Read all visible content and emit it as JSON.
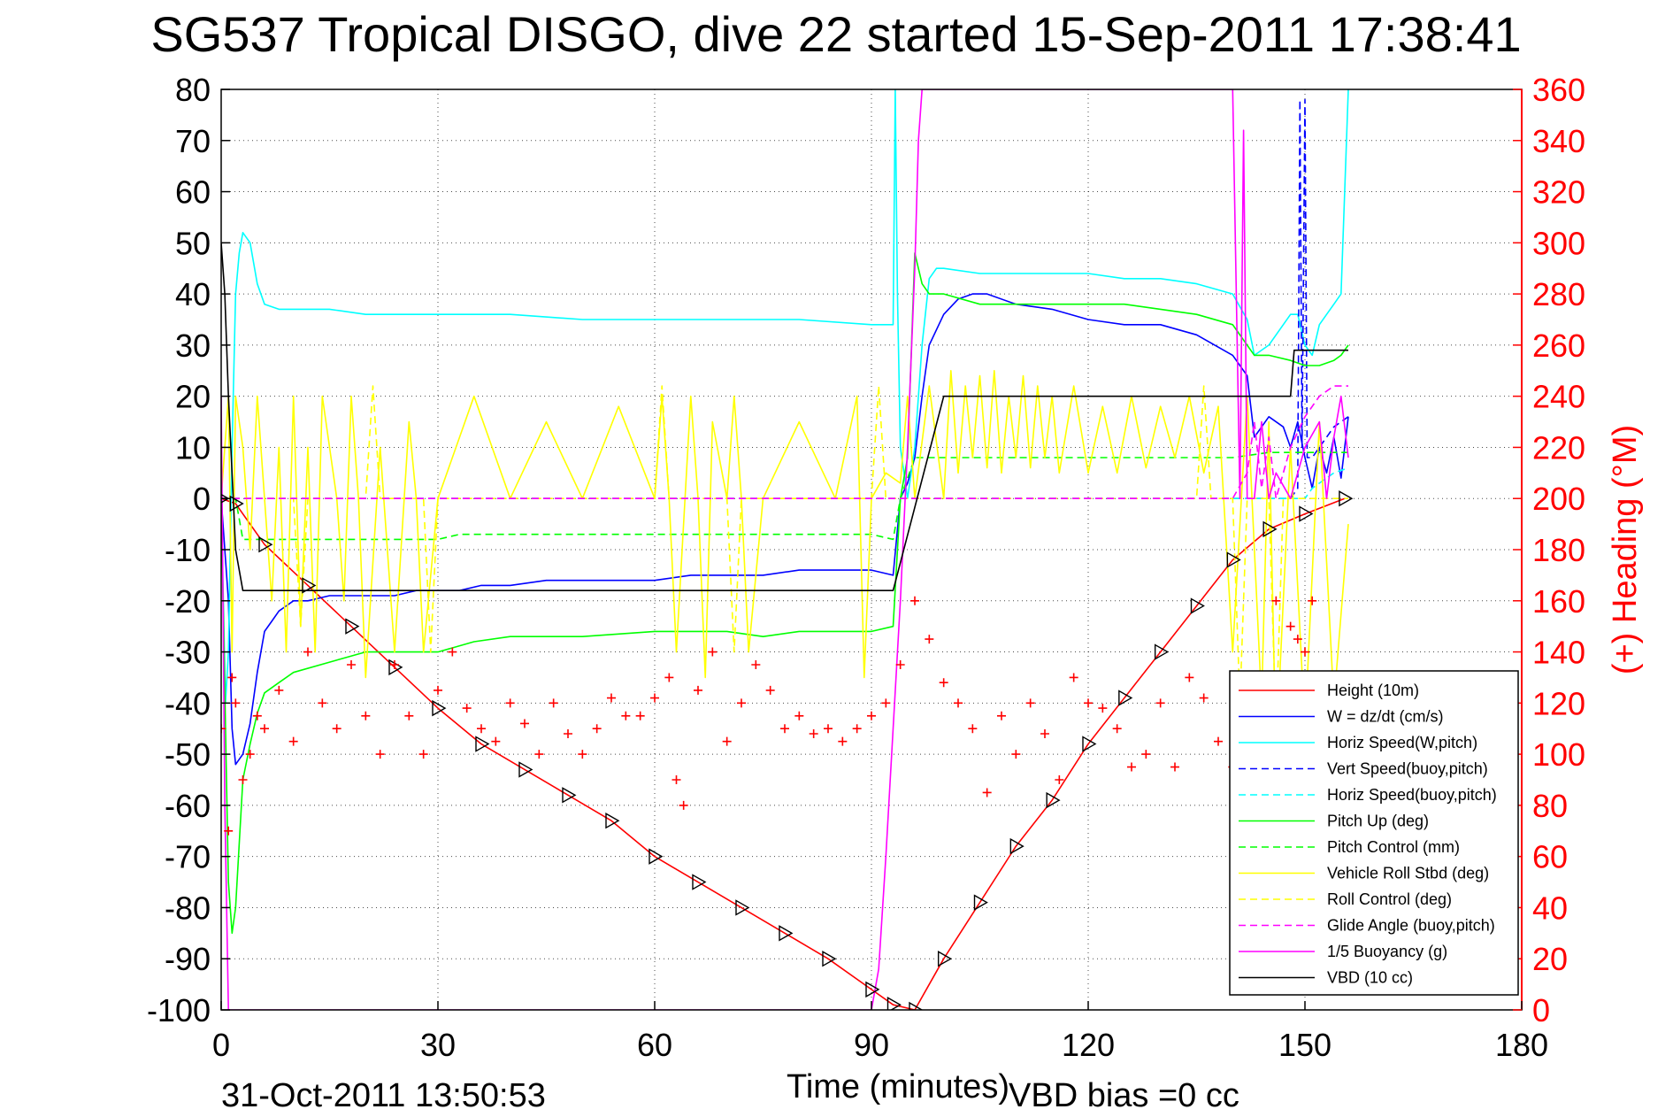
{
  "chart_data": {
    "type": "line",
    "title": "SG537 Tropical DISGO, dive 22 started 15-Sep-2011 17:38:41",
    "xlabel": "Time (minutes)",
    "ylabel_right": "(+) Heading (°M)",
    "xlim": [
      0,
      180
    ],
    "ylim": [
      -100,
      80
    ],
    "ylim_right": [
      0,
      360
    ],
    "x_ticks": [
      "0",
      "30",
      "60",
      "90",
      "120",
      "150",
      "180"
    ],
    "y_ticks": [
      "80",
      "70",
      "60",
      "50",
      "40",
      "30",
      "20",
      "10",
      "0",
      "-10",
      "-20",
      "-30",
      "-40",
      "-50",
      "-60",
      "-70",
      "-80",
      "-90",
      "-100"
    ],
    "y_right_ticks": [
      "360",
      "340",
      "320",
      "300",
      "280",
      "260",
      "240",
      "220",
      "200",
      "180",
      "160",
      "140",
      "120",
      "100",
      "80",
      "60",
      "40",
      "20",
      "0"
    ],
    "grid": true,
    "legend_position": "bottom-right",
    "footer_date": "31-Oct-2011 13:50:53",
    "footer_vbd": "VBD bias =0 cc",
    "legend": [
      {
        "label": "Height (10m)",
        "color": "#ff0000",
        "dash": "solid"
      },
      {
        "label": "W = dz/dt (cm/s)",
        "color": "#0000ff",
        "dash": "solid"
      },
      {
        "label": "Horiz Speed(W,pitch)",
        "color": "#00ffff",
        "dash": "solid"
      },
      {
        "label": "Vert Speed(buoy,pitch)",
        "color": "#0000ff",
        "dash": "dashed"
      },
      {
        "label": "Horiz Speed(buoy,pitch)",
        "color": "#00ffff",
        "dash": "dashed"
      },
      {
        "label": "Pitch Up (deg)",
        "color": "#00ff00",
        "dash": "solid"
      },
      {
        "label": "Pitch Control (mm)",
        "color": "#00ff00",
        "dash": "dashed"
      },
      {
        "label": "Vehicle Roll Stbd (deg)",
        "color": "#ffff00",
        "dash": "solid"
      },
      {
        "label": "Roll Control (deg)",
        "color": "#ffff00",
        "dash": "dashed"
      },
      {
        "label": "Glide Angle (buoy,pitch)",
        "color": "#ff00ff",
        "dash": "dashed"
      },
      {
        "label": "1/5 Buoyancy (g)",
        "color": "#ff00ff",
        "dash": "solid"
      },
      {
        "label": "VBD (10 cc)",
        "color": "#000000",
        "dash": "solid"
      }
    ],
    "series": [
      {
        "name": "Height (10m)",
        "color": "#ff0000",
        "dash": "solid",
        "marker": "triangle",
        "x": [
          0,
          2,
          6,
          12,
          18,
          24,
          30,
          36,
          42,
          48,
          54,
          60,
          66,
          72,
          78,
          84,
          90,
          93,
          96,
          100,
          105,
          110,
          115,
          120,
          125,
          130,
          135,
          140,
          145,
          150,
          155.5
        ],
        "y": [
          0,
          -1,
          -9,
          -17,
          -25,
          -33,
          -41,
          -48,
          -53,
          -58,
          -63,
          -70,
          -75,
          -80,
          -85,
          -90,
          -96,
          -99,
          -100,
          -90,
          -79,
          -68,
          -59,
          -48,
          -39,
          -30,
          -21,
          -12,
          -6,
          -3,
          0
        ]
      },
      {
        "name": "W = dz/dt (cm/s)",
        "color": "#0000ff",
        "dash": "solid",
        "x": [
          0,
          1,
          1.5,
          2,
          3,
          4,
          5,
          6,
          7,
          8,
          9,
          10,
          12,
          15,
          18,
          21,
          24,
          27,
          30,
          33,
          36,
          40,
          45,
          50,
          55,
          60,
          65,
          70,
          75,
          80,
          85,
          90,
          93,
          94,
          95,
          96,
          97,
          98,
          100,
          102,
          104,
          106,
          110,
          115,
          120,
          125,
          130,
          135,
          140,
          142,
          143,
          145,
          147,
          148,
          149,
          150,
          151,
          152,
          153,
          154,
          155,
          156
        ],
        "y": [
          0,
          -20,
          -45,
          -52,
          -50,
          -44,
          -34,
          -26,
          -24,
          -22,
          -21,
          -20,
          -20,
          -19,
          -19,
          -19,
          -19,
          -18,
          -18,
          -18,
          -17,
          -17,
          -16,
          -16,
          -16,
          -16,
          -15,
          -15,
          -15,
          -14,
          -14,
          -14,
          -15,
          0,
          3,
          8,
          20,
          30,
          36,
          39,
          40,
          40,
          38,
          37,
          35,
          34,
          34,
          32,
          28,
          24,
          12,
          16,
          14,
          10,
          15,
          8,
          2,
          10,
          5,
          12,
          4,
          16
        ]
      },
      {
        "name": "Horiz Speed(W,pitch)",
        "color": "#00ffff",
        "dash": "solid",
        "x": [
          0,
          0.6,
          1,
          1.5,
          2,
          2.5,
          3,
          4,
          5,
          6,
          8,
          10,
          15,
          20,
          25,
          30,
          40,
          50,
          60,
          70,
          80,
          90,
          93,
          93.3,
          93.6,
          94,
          95,
          96,
          97,
          98,
          99,
          100,
          105,
          110,
          115,
          120,
          125,
          130,
          135,
          140,
          142,
          143,
          145,
          147,
          148,
          149,
          150,
          151,
          152,
          153,
          154,
          155,
          155.5,
          156
        ],
        "y": [
          0,
          -40,
          -30,
          10,
          40,
          48,
          52,
          50,
          42,
          38,
          37,
          37,
          37,
          36,
          36,
          36,
          36,
          35,
          35,
          35,
          35,
          34,
          34,
          80,
          40,
          10,
          0,
          10,
          30,
          43,
          45,
          45,
          44,
          44,
          44,
          44,
          43,
          43,
          42,
          40,
          35,
          28,
          30,
          34,
          36,
          36,
          30,
          28,
          34,
          36,
          38,
          40,
          60,
          80
        ]
      },
      {
        "name": "Vert Speed(buoy,pitch)",
        "color": "#0000ff",
        "dash": "dashed",
        "x": [
          0,
          148,
          149,
          149.3,
          149.6,
          150,
          150.3,
          151,
          152,
          153,
          154,
          155,
          156
        ],
        "y": [
          0,
          0,
          2,
          78,
          10,
          78,
          8,
          8,
          10,
          12,
          14,
          15,
          16
        ]
      },
      {
        "name": "Horiz Speed(buoy,pitch)",
        "color": "#00ffff",
        "dash": "dashed",
        "x": [
          0,
          148,
          150,
          151,
          152,
          154,
          156
        ],
        "y": [
          0,
          0,
          0,
          2,
          3,
          5,
          6
        ]
      },
      {
        "name": "Pitch Up (deg)",
        "color": "#00ff00",
        "dash": "solid",
        "x": [
          0,
          1,
          1.5,
          2,
          3,
          4,
          5,
          6,
          8,
          10,
          15,
          20,
          25,
          30,
          35,
          40,
          45,
          50,
          60,
          70,
          75,
          80,
          90,
          93,
          94,
          95,
          96,
          97,
          98,
          100,
          105,
          110,
          115,
          120,
          125,
          130,
          135,
          140,
          143,
          145,
          148,
          150,
          152,
          154,
          155,
          156
        ],
        "y": [
          0,
          -75,
          -85,
          -80,
          -55,
          -48,
          -42,
          -38,
          -36,
          -34,
          -32,
          -30,
          -30,
          -30,
          -28,
          -27,
          -27,
          -27,
          -26,
          -26,
          -27,
          -26,
          -26,
          -25,
          0,
          8,
          48,
          42,
          40,
          40,
          38,
          38,
          38,
          38,
          38,
          37,
          36,
          34,
          28,
          28,
          27,
          26,
          26,
          27,
          28,
          30
        ]
      },
      {
        "name": "Pitch Control (mm)",
        "color": "#00ff00",
        "dash": "dashed",
        "x": [
          0,
          2,
          3,
          5,
          10,
          20,
          30,
          33,
          60,
          90,
          93,
          94,
          96,
          97,
          100,
          130,
          140,
          145,
          150,
          156
        ],
        "y": [
          0,
          0,
          -8,
          -8,
          -8,
          -8,
          -8,
          -7,
          -7,
          -7,
          -8,
          0,
          8,
          8,
          8,
          8,
          8,
          9,
          9,
          9
        ]
      },
      {
        "name": "Vehicle Roll Stbd (deg)",
        "color": "#ffff00",
        "dash": "solid",
        "x": [
          0,
          1,
          1.5,
          2,
          3,
          4,
          5,
          6,
          7,
          8,
          9,
          10,
          11,
          12,
          13,
          14,
          16,
          17,
          18,
          19,
          20,
          22,
          24,
          26,
          27,
          28,
          30,
          35,
          40,
          45,
          50,
          55,
          60,
          61,
          62,
          63,
          65,
          66,
          67,
          68,
          70,
          71,
          72,
          73,
          75,
          80,
          85,
          88,
          89,
          90,
          92,
          94,
          95,
          96,
          98,
          100,
          101,
          102,
          103,
          104,
          105,
          106,
          107,
          108,
          109,
          110,
          111,
          112,
          113,
          114,
          115,
          116,
          118,
          120,
          122,
          124,
          126,
          128,
          130,
          132,
          134,
          136,
          138,
          140,
          142,
          144,
          145,
          146,
          148,
          150,
          152,
          154,
          156
        ],
        "y": [
          0,
          20,
          -30,
          20,
          10,
          -10,
          20,
          0,
          -20,
          10,
          -30,
          20,
          -25,
          10,
          -30,
          20,
          0,
          -20,
          20,
          0,
          -35,
          10,
          -30,
          15,
          0,
          -30,
          0,
          20,
          0,
          15,
          0,
          18,
          0,
          20,
          0,
          -30,
          20,
          0,
          -35,
          15,
          0,
          20,
          0,
          -30,
          0,
          15,
          0,
          20,
          -35,
          0,
          5,
          3,
          20,
          0,
          22,
          0,
          25,
          5,
          22,
          8,
          24,
          6,
          25,
          5,
          20,
          8,
          24,
          6,
          22,
          8,
          20,
          5,
          22,
          5,
          18,
          5,
          20,
          6,
          18,
          8,
          20,
          5,
          18,
          -30,
          20,
          -40,
          15,
          -50,
          10,
          -45,
          15,
          -40,
          -5
        ]
      },
      {
        "name": "Roll Control (deg)",
        "color": "#ffff00",
        "dash": "dashed",
        "x": [
          0,
          10,
          11,
          12,
          20,
          21,
          22,
          28,
          29,
          30,
          60,
          61,
          62,
          70,
          71,
          72,
          90,
          91,
          92,
          100,
          135,
          136,
          137,
          140,
          141,
          142,
          145,
          146,
          147,
          156
        ],
        "y": [
          0,
          0,
          -25,
          0,
          0,
          22,
          0,
          0,
          -30,
          0,
          0,
          22,
          0,
          0,
          -30,
          0,
          0,
          22,
          0,
          0,
          0,
          22,
          0,
          0,
          -40,
          0,
          0,
          -45,
          0,
          0
        ]
      },
      {
        "name": "Glide Angle (buoy,pitch)",
        "color": "#ff00ff",
        "dash": "dashed",
        "x": [
          0,
          140,
          142,
          143,
          144,
          145,
          146,
          148,
          150,
          152,
          154,
          156
        ],
        "y": [
          0,
          0,
          5,
          15,
          2,
          12,
          0,
          10,
          16,
          20,
          22,
          22
        ]
      },
      {
        "name": "1/5 Buoyancy (g)",
        "color": "#ff00ff",
        "dash": "solid",
        "x": [
          0,
          0.5,
          1,
          90,
          91,
          92,
          93,
          94,
          95,
          96,
          96.5,
          97,
          140,
          141,
          141.5,
          142,
          143,
          144,
          145,
          146,
          148,
          150,
          152,
          153,
          154,
          155,
          156
        ],
        "y": [
          20,
          -60,
          -100,
          -100,
          -92,
          -70,
          -45,
          -20,
          10,
          45,
          70,
          80,
          80,
          0,
          72,
          0,
          0,
          15,
          0,
          5,
          0,
          10,
          15,
          0,
          12,
          20,
          8
        ]
      },
      {
        "name": "VBD (10 cc)",
        "color": "#000000",
        "dash": "solid",
        "x": [
          0,
          0.5,
          1,
          1.5,
          2,
          3,
          93,
          100,
          148,
          148.5,
          156
        ],
        "y": [
          50,
          40,
          20,
          5,
          -10,
          -18,
          -18,
          20,
          20,
          29,
          29
        ]
      },
      {
        "name": "Heading",
        "color": "#ff0000",
        "dash": "plus",
        "axis": "right",
        "x": [
          0,
          1,
          1.5,
          2,
          3,
          4,
          5,
          6,
          8,
          10,
          12,
          14,
          16,
          18,
          20,
          22,
          24,
          26,
          28,
          30,
          32,
          34,
          36,
          38,
          40,
          42,
          44,
          46,
          48,
          50,
          52,
          54,
          56,
          58,
          60,
          62,
          63,
          64,
          66,
          68,
          70,
          72,
          74,
          76,
          78,
          80,
          82,
          84,
          86,
          88,
          90,
          92,
          94,
          96,
          98,
          100,
          102,
          104,
          106,
          108,
          110,
          112,
          114,
          116,
          118,
          120,
          122,
          124,
          126,
          128,
          130,
          132,
          134,
          136,
          138,
          140,
          142,
          144,
          146,
          148,
          149,
          150,
          151,
          152,
          153
        ],
        "y": [
          110,
          70,
          130,
          120,
          90,
          100,
          115,
          110,
          125,
          105,
          140,
          120,
          110,
          135,
          115,
          100,
          135,
          115,
          100,
          125,
          140,
          118,
          110,
          105,
          120,
          112,
          100,
          120,
          108,
          100,
          110,
          122,
          115,
          115,
          122,
          130,
          90,
          80,
          125,
          140,
          105,
          120,
          135,
          125,
          110,
          115,
          108,
          110,
          105,
          110,
          115,
          120,
          135,
          160,
          145,
          128,
          120,
          110,
          85,
          115,
          100,
          120,
          108,
          90,
          130,
          120,
          118,
          110,
          95,
          100,
          120,
          95,
          130,
          122,
          105,
          95,
          100,
          115,
          160,
          150,
          145,
          140,
          160,
          130,
          115
        ]
      }
    ]
  }
}
